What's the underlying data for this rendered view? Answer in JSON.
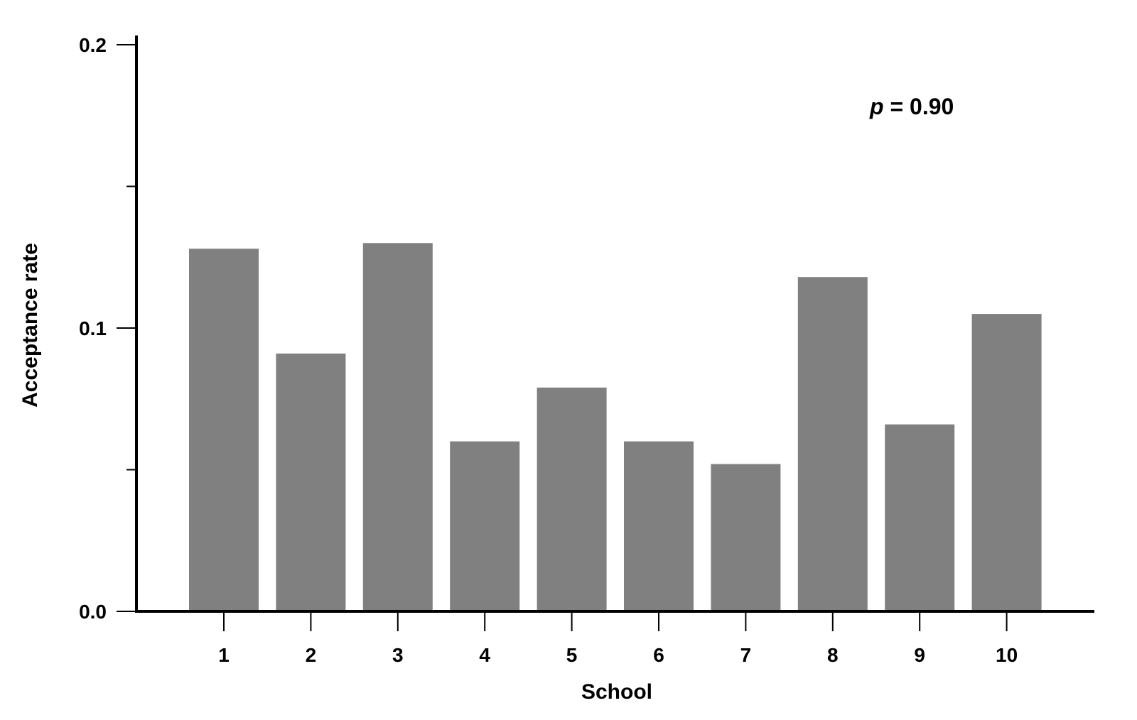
{
  "chart_data": {
    "type": "bar",
    "categories": [
      "1",
      "2",
      "3",
      "4",
      "5",
      "6",
      "7",
      "8",
      "9",
      "10"
    ],
    "values": [
      0.128,
      0.091,
      0.13,
      0.06,
      0.079,
      0.06,
      0.052,
      0.118,
      0.066,
      0.105
    ],
    "title": "",
    "xlabel": "School",
    "ylabel": "Acceptance rate",
    "ylim": [
      0,
      0.2
    ],
    "yticks_labeled": [
      "0.0",
      "0.1",
      "0.2"
    ],
    "yticks_minor": [
      0.05,
      0.15
    ],
    "bar_color": "#808080",
    "grid": false,
    "legend": "none",
    "annotation": {
      "italic": "p",
      "rest": " = 0.90"
    }
  }
}
